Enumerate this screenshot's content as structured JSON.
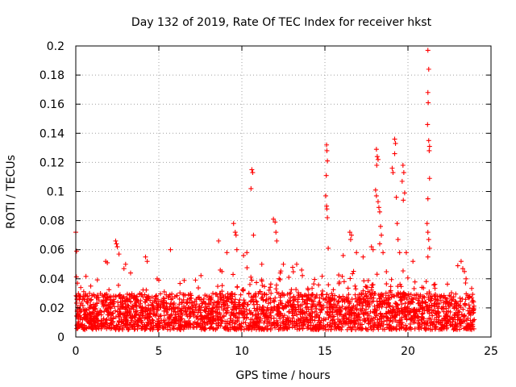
{
  "chart_data": {
    "type": "scatter",
    "title": "Day 132 of 2019, Rate Of TEC Index for receiver hkst",
    "xlabel": "GPS time / hours",
    "ylabel": "ROTI / TECUs",
    "xlim": [
      0,
      25
    ],
    "ylim": [
      0,
      0.2
    ],
    "xticks": [
      0,
      5,
      10,
      15,
      20,
      25
    ],
    "yticks": [
      0,
      0.02,
      0.04,
      0.06,
      0.08,
      0.1,
      0.12,
      0.14,
      0.16,
      0.18,
      0.2
    ],
    "xtick_labels": [
      "0",
      "5",
      "10",
      "15",
      "20",
      "25"
    ],
    "ytick_labels": [
      "0",
      "0.02",
      "0.04",
      "0.06",
      "0.08",
      "0.1",
      "0.12",
      "0.14",
      "0.16",
      "0.18",
      "0.2"
    ],
    "grid": true,
    "marker": "+",
    "color": "#ff0000",
    "series": [
      {
        "name": "ROTI",
        "baseline_band": {
          "x_range": [
            0,
            24
          ],
          "y_range": [
            0.005,
            0.03
          ],
          "note": "dense cloud of points"
        },
        "points": [
          [
            0.0,
            0.072
          ],
          [
            0.05,
            0.059
          ],
          [
            0.1,
            0.037
          ],
          [
            0.3,
            0.034
          ],
          [
            0.9,
            0.035
          ],
          [
            1.8,
            0.052
          ],
          [
            1.9,
            0.051
          ],
          [
            2.4,
            0.066
          ],
          [
            2.45,
            0.064
          ],
          [
            2.5,
            0.062
          ],
          [
            2.6,
            0.057
          ],
          [
            2.9,
            0.047
          ],
          [
            3.0,
            0.05
          ],
          [
            3.3,
            0.044
          ],
          [
            4.2,
            0.055
          ],
          [
            4.3,
            0.052
          ],
          [
            4.9,
            0.04
          ],
          [
            5.0,
            0.039
          ],
          [
            5.7,
            0.06
          ],
          [
            8.6,
            0.066
          ],
          [
            8.7,
            0.046
          ],
          [
            8.8,
            0.045
          ],
          [
            9.1,
            0.058
          ],
          [
            9.5,
            0.078
          ],
          [
            9.6,
            0.072
          ],
          [
            9.65,
            0.07
          ],
          [
            9.7,
            0.06
          ],
          [
            10.1,
            0.056
          ],
          [
            10.3,
            0.058
          ],
          [
            10.6,
            0.115
          ],
          [
            10.65,
            0.113
          ],
          [
            10.55,
            0.102
          ],
          [
            10.7,
            0.07
          ],
          [
            11.2,
            0.05
          ],
          [
            11.9,
            0.081
          ],
          [
            12.0,
            0.079
          ],
          [
            12.05,
            0.072
          ],
          [
            12.1,
            0.066
          ],
          [
            12.5,
            0.05
          ],
          [
            13.3,
            0.05
          ],
          [
            13.6,
            0.046
          ],
          [
            15.1,
            0.132
          ],
          [
            15.12,
            0.128
          ],
          [
            15.15,
            0.121
          ],
          [
            15.08,
            0.111
          ],
          [
            15.05,
            0.097
          ],
          [
            15.1,
            0.09
          ],
          [
            15.12,
            0.088
          ],
          [
            15.15,
            0.082
          ],
          [
            15.2,
            0.061
          ],
          [
            16.1,
            0.056
          ],
          [
            16.5,
            0.072
          ],
          [
            16.6,
            0.07
          ],
          [
            16.55,
            0.067
          ],
          [
            16.9,
            0.058
          ],
          [
            17.3,
            0.055
          ],
          [
            17.8,
            0.062
          ],
          [
            17.9,
            0.06
          ],
          [
            18.1,
            0.129
          ],
          [
            18.15,
            0.124
          ],
          [
            18.2,
            0.122
          ],
          [
            18.12,
            0.118
          ],
          [
            18.05,
            0.101
          ],
          [
            18.1,
            0.097
          ],
          [
            18.2,
            0.093
          ],
          [
            18.25,
            0.089
          ],
          [
            18.3,
            0.086
          ],
          [
            18.35,
            0.076
          ],
          [
            18.4,
            0.07
          ],
          [
            18.3,
            0.064
          ],
          [
            18.5,
            0.058
          ],
          [
            19.2,
            0.136
          ],
          [
            19.25,
            0.133
          ],
          [
            19.2,
            0.126
          ],
          [
            19.05,
            0.116
          ],
          [
            19.1,
            0.113
          ],
          [
            19.3,
            0.096
          ],
          [
            19.35,
            0.078
          ],
          [
            19.4,
            0.067
          ],
          [
            19.5,
            0.058
          ],
          [
            19.7,
            0.118
          ],
          [
            19.75,
            0.113
          ],
          [
            19.65,
            0.107
          ],
          [
            19.8,
            0.099
          ],
          [
            19.72,
            0.094
          ],
          [
            19.9,
            0.058
          ],
          [
            20.3,
            0.052
          ],
          [
            21.2,
            0.197
          ],
          [
            21.25,
            0.184
          ],
          [
            21.2,
            0.168
          ],
          [
            21.22,
            0.161
          ],
          [
            21.18,
            0.146
          ],
          [
            21.25,
            0.135
          ],
          [
            21.3,
            0.131
          ],
          [
            21.28,
            0.128
          ],
          [
            21.3,
            0.109
          ],
          [
            21.2,
            0.095
          ],
          [
            21.15,
            0.078
          ],
          [
            21.2,
            0.072
          ],
          [
            21.25,
            0.067
          ],
          [
            21.3,
            0.061
          ],
          [
            21.2,
            0.055
          ],
          [
            23.0,
            0.049
          ],
          [
            23.2,
            0.052
          ],
          [
            23.3,
            0.047
          ],
          [
            23.4,
            0.045
          ],
          [
            23.5,
            0.04
          ]
        ]
      }
    ]
  }
}
